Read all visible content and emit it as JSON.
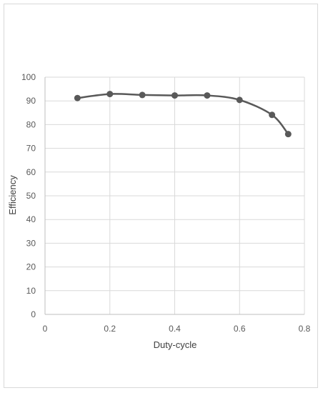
{
  "chart_data": {
    "type": "line",
    "title": "",
    "xlabel": "Duty-cycle",
    "ylabel": "Efficiency",
    "xlim": [
      0,
      0.8
    ],
    "ylim": [
      0,
      100
    ],
    "xticks": [
      0,
      0.2,
      0.4,
      0.6,
      0.8
    ],
    "yticks": [
      0,
      10,
      20,
      30,
      40,
      50,
      60,
      70,
      80,
      90,
      100
    ],
    "grid": true,
    "smoothed": true,
    "colors": {
      "series": "#595959",
      "grid": "#d9d9d9",
      "axis": "#bfbfbf"
    },
    "series": [
      {
        "x": [
          0.1,
          0.2,
          0.3,
          0.4,
          0.5,
          0.6,
          0.7,
          0.75
        ],
        "y": [
          91.2,
          92.9,
          92.5,
          92.3,
          92.3,
          90.4,
          84.1,
          76.0
        ]
      }
    ]
  }
}
